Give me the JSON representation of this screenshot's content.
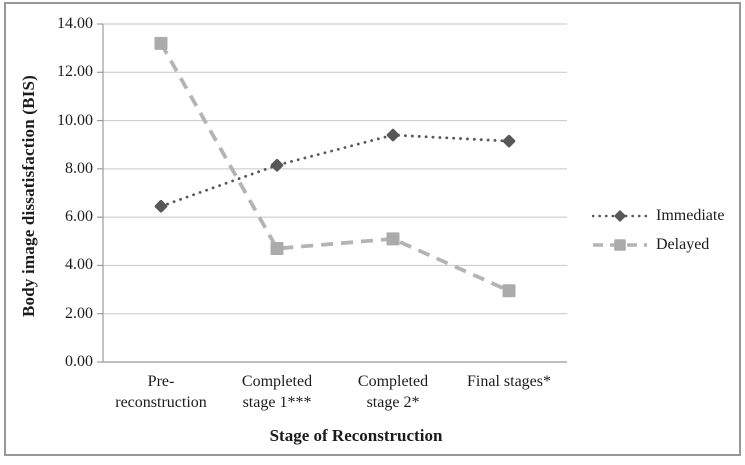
{
  "chart_data": {
    "type": "line",
    "title": "",
    "xlabel": "Stage of Reconstruction",
    "ylabel": "Body image dissatisfaction (BIS)",
    "categories": [
      "Pre-\nreconstruction",
      "Completed\nstage 1***",
      "Completed\nstage 2*",
      "Final stages*"
    ],
    "y_ticks": [
      "0.00",
      "2.00",
      "4.00",
      "6.00",
      "8.00",
      "10.00",
      "12.00",
      "14.00"
    ],
    "ylim": [
      0,
      14
    ],
    "grid": true,
    "legend_position": "right",
    "series": [
      {
        "name": "Immediate",
        "values": [
          6.45,
          8.15,
          9.4,
          9.15
        ],
        "marker": "diamond",
        "line_style": "dotted",
        "color": "#575757",
        "marker_color": "#575757"
      },
      {
        "name": "Delayed",
        "values": [
          13.2,
          4.7,
          5.1,
          2.95
        ],
        "marker": "square",
        "line_style": "dashed",
        "color": "#b4b4b4",
        "marker_color": "#ababab"
      }
    ],
    "style": {
      "grid_color": "#c7c7c7",
      "axis_color": "#9b9b9b",
      "frame_color": "#979797",
      "text_color": "#1c1c1c"
    }
  }
}
